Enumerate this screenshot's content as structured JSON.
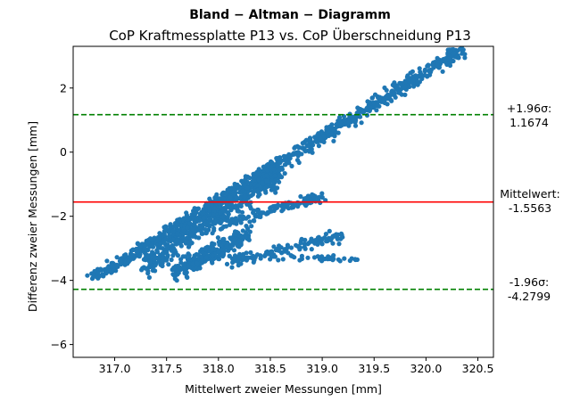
{
  "chart_data": {
    "type": "scatter",
    "title": "Bland − Altman − Diagramm",
    "subtitle": "CoP Kraftmessplatte P13 vs. CoP Überschneidung P13",
    "xlabel": "Mittelwert zweier Messungen [mm]",
    "ylabel": "Differenz zweier Messungen [mm]",
    "xlim": [
      316.6,
      320.65
    ],
    "ylim": [
      -6.4,
      3.3
    ],
    "xticks": [
      "317.0",
      "317.5",
      "318.0",
      "318.5",
      "319.0",
      "319.5",
      "320.0",
      "320.5"
    ],
    "yticks": [
      "−6",
      "−4",
      "−2",
      "0",
      "2"
    ],
    "grid": false,
    "colors": {
      "points": "#1f77b4",
      "mean_line": "#ff0000",
      "limit_lines": "#008000"
    },
    "reference_lines": [
      {
        "kind": "upper_limit",
        "y": 1.1674,
        "label_line1": "+1.96σ:",
        "label_line2": "1.1674"
      },
      {
        "kind": "mean",
        "y": -1.5563,
        "label_line1": "Mittelwert:",
        "label_line2": "-1.5563"
      },
      {
        "kind": "lower_limit",
        "y": -4.2799,
        "label_line1": "-1.96σ:",
        "label_line2": "-4.2799"
      }
    ],
    "clusters": [
      {
        "x_from": 316.8,
        "x_to": 320.35,
        "y_from": -3.95,
        "y_to": 3.2,
        "spread": 0.18,
        "count": 900
      },
      {
        "x_from": 317.3,
        "x_to": 318.6,
        "y_from": -3.5,
        "y_to": -0.6,
        "spread": 0.35,
        "count": 500
      },
      {
        "x_from": 317.6,
        "x_to": 318.3,
        "y_from": -3.7,
        "y_to": -2.5,
        "spread": 0.25,
        "count": 250
      },
      {
        "x_from": 318.0,
        "x_to": 319.0,
        "y_from": -2.2,
        "y_to": -1.4,
        "spread": 0.15,
        "count": 120
      },
      {
        "x_from": 318.1,
        "x_to": 319.2,
        "y_from": -3.4,
        "y_to": -2.6,
        "spread": 0.15,
        "count": 110
      },
      {
        "x_from": 317.8,
        "x_to": 319.4,
        "y_from": -3.25,
        "y_to": -3.3,
        "spread": 0.08,
        "count": 70
      }
    ]
  }
}
